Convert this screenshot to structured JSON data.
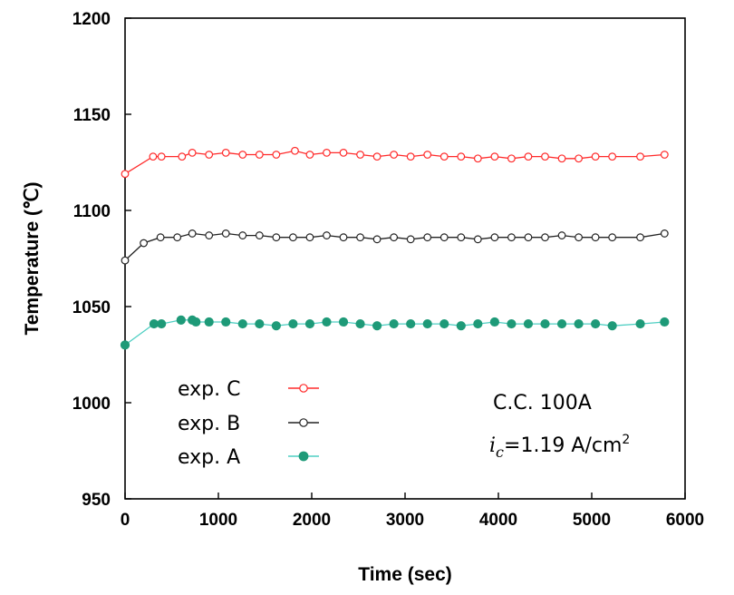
{
  "chart_data": {
    "type": "line",
    "title": "",
    "xlabel": "Time (sec)",
    "ylabel": "Temperature (℃)",
    "xlim": [
      0,
      6000
    ],
    "ylim": [
      950,
      1200
    ],
    "xticks": [
      "0",
      "1000",
      "2000",
      "3000",
      "4000",
      "5000",
      "6000"
    ],
    "yticks": [
      "950",
      "1000",
      "1050",
      "1100",
      "1150",
      "1200"
    ],
    "grid": false,
    "legend_position": "lower-left",
    "series": [
      {
        "name": "exp. C",
        "color": "#ff2a2a",
        "marker": "open-circle",
        "points": [
          [
            0,
            1119
          ],
          [
            300,
            1128
          ],
          [
            390,
            1128
          ],
          [
            610,
            1128
          ],
          [
            720,
            1130
          ],
          [
            900,
            1129
          ],
          [
            1080,
            1130
          ],
          [
            1260,
            1129
          ],
          [
            1440,
            1129
          ],
          [
            1620,
            1129
          ],
          [
            1820,
            1131
          ],
          [
            1980,
            1129
          ],
          [
            2160,
            1130
          ],
          [
            2340,
            1130
          ],
          [
            2520,
            1129
          ],
          [
            2700,
            1128
          ],
          [
            2880,
            1129
          ],
          [
            3060,
            1128
          ],
          [
            3240,
            1129
          ],
          [
            3420,
            1128
          ],
          [
            3600,
            1128
          ],
          [
            3780,
            1127
          ],
          [
            3960,
            1128
          ],
          [
            4140,
            1127
          ],
          [
            4320,
            1128
          ],
          [
            4500,
            1128
          ],
          [
            4680,
            1127
          ],
          [
            4860,
            1127
          ],
          [
            5040,
            1128
          ],
          [
            5220,
            1128
          ],
          [
            5520,
            1128
          ],
          [
            5780,
            1129
          ]
        ]
      },
      {
        "name": "exp. B",
        "color": "#222222",
        "marker": "open-circle",
        "points": [
          [
            0,
            1074
          ],
          [
            200,
            1083
          ],
          [
            380,
            1086
          ],
          [
            560,
            1086
          ],
          [
            720,
            1088
          ],
          [
            900,
            1087
          ],
          [
            1080,
            1088
          ],
          [
            1260,
            1087
          ],
          [
            1440,
            1087
          ],
          [
            1620,
            1086
          ],
          [
            1800,
            1086
          ],
          [
            1980,
            1086
          ],
          [
            2160,
            1087
          ],
          [
            2340,
            1086
          ],
          [
            2520,
            1086
          ],
          [
            2700,
            1085
          ],
          [
            2880,
            1086
          ],
          [
            3060,
            1085
          ],
          [
            3240,
            1086
          ],
          [
            3420,
            1086
          ],
          [
            3600,
            1086
          ],
          [
            3780,
            1085
          ],
          [
            3960,
            1086
          ],
          [
            4140,
            1086
          ],
          [
            4320,
            1086
          ],
          [
            4500,
            1086
          ],
          [
            4680,
            1087
          ],
          [
            4860,
            1086
          ],
          [
            5040,
            1086
          ],
          [
            5220,
            1086
          ],
          [
            5520,
            1086
          ],
          [
            5780,
            1088
          ]
        ]
      },
      {
        "name": "exp. A",
        "color": "#4fcfc3",
        "marker_color": "#1e9a78",
        "marker": "filled-circle",
        "points": [
          [
            0,
            1030
          ],
          [
            310,
            1041
          ],
          [
            390,
            1041
          ],
          [
            600,
            1043
          ],
          [
            720,
            1043
          ],
          [
            760,
            1042
          ],
          [
            900,
            1042
          ],
          [
            1080,
            1042
          ],
          [
            1260,
            1041
          ],
          [
            1440,
            1041
          ],
          [
            1620,
            1040
          ],
          [
            1800,
            1041
          ],
          [
            1980,
            1041
          ],
          [
            2160,
            1042
          ],
          [
            2340,
            1042
          ],
          [
            2520,
            1041
          ],
          [
            2700,
            1040
          ],
          [
            2880,
            1041
          ],
          [
            3060,
            1041
          ],
          [
            3240,
            1041
          ],
          [
            3420,
            1041
          ],
          [
            3600,
            1040
          ],
          [
            3780,
            1041
          ],
          [
            3960,
            1042
          ],
          [
            4140,
            1041
          ],
          [
            4320,
            1041
          ],
          [
            4500,
            1041
          ],
          [
            4680,
            1041
          ],
          [
            4860,
            1041
          ],
          [
            5040,
            1041
          ],
          [
            5220,
            1040
          ],
          [
            5520,
            1041
          ],
          [
            5780,
            1042
          ]
        ]
      }
    ],
    "annotations": {
      "line1": "C.C. 100A",
      "ic_symbol": "i",
      "ic_subscript": "c",
      "ic_value": "=1.19 A/cm",
      "ic_superscript": "2"
    }
  }
}
